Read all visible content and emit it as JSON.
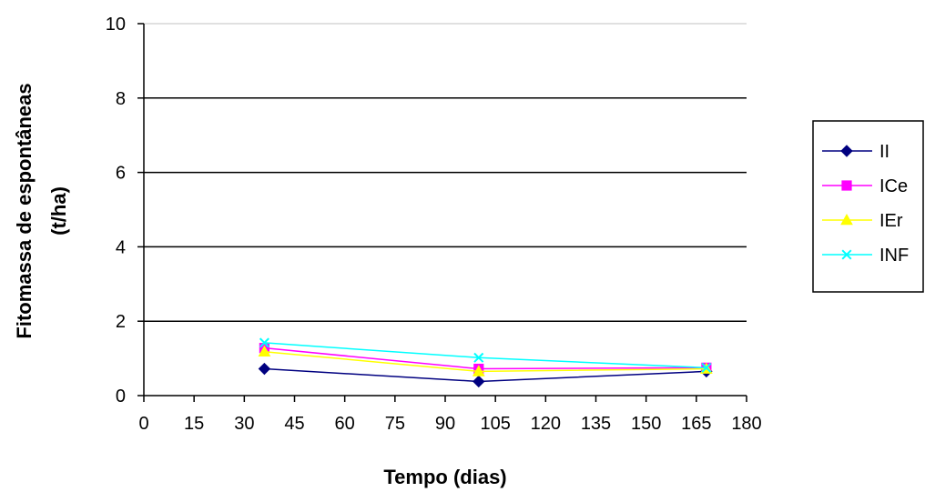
{
  "chart_data": {
    "type": "line",
    "title": "",
    "xlabel": "Tempo (dias)",
    "ylabel": "Fitomassa de espontâneas (t/ha)",
    "ylabel_lines": [
      "Fitomassa de espontâneas",
      "(t/ha)"
    ],
    "xlim": [
      0,
      180
    ],
    "ylim": [
      0,
      10
    ],
    "x_ticks": [
      0,
      15,
      30,
      45,
      60,
      75,
      90,
      105,
      120,
      135,
      150,
      165,
      180
    ],
    "y_ticks": [
      0,
      2,
      4,
      6,
      8,
      10
    ],
    "grid": "horizontal",
    "legend_position": "right",
    "series": [
      {
        "name": "II",
        "color": "#000080",
        "marker": "diamond",
        "x": [
          36,
          100,
          168
        ],
        "y": [
          0.72,
          0.38,
          0.65
        ]
      },
      {
        "name": "ICe",
        "color": "#ff00ff",
        "marker": "square",
        "x": [
          36,
          100,
          168
        ],
        "y": [
          1.28,
          0.72,
          0.75
        ]
      },
      {
        "name": "IEr",
        "color": "#ffff00",
        "marker": "triangle",
        "x": [
          36,
          100,
          168
        ],
        "y": [
          1.18,
          0.65,
          0.72
        ]
      },
      {
        "name": "INF",
        "color": "#00ffff",
        "marker": "x",
        "x": [
          36,
          100,
          168
        ],
        "y": [
          1.42,
          1.02,
          0.75
        ]
      }
    ]
  }
}
